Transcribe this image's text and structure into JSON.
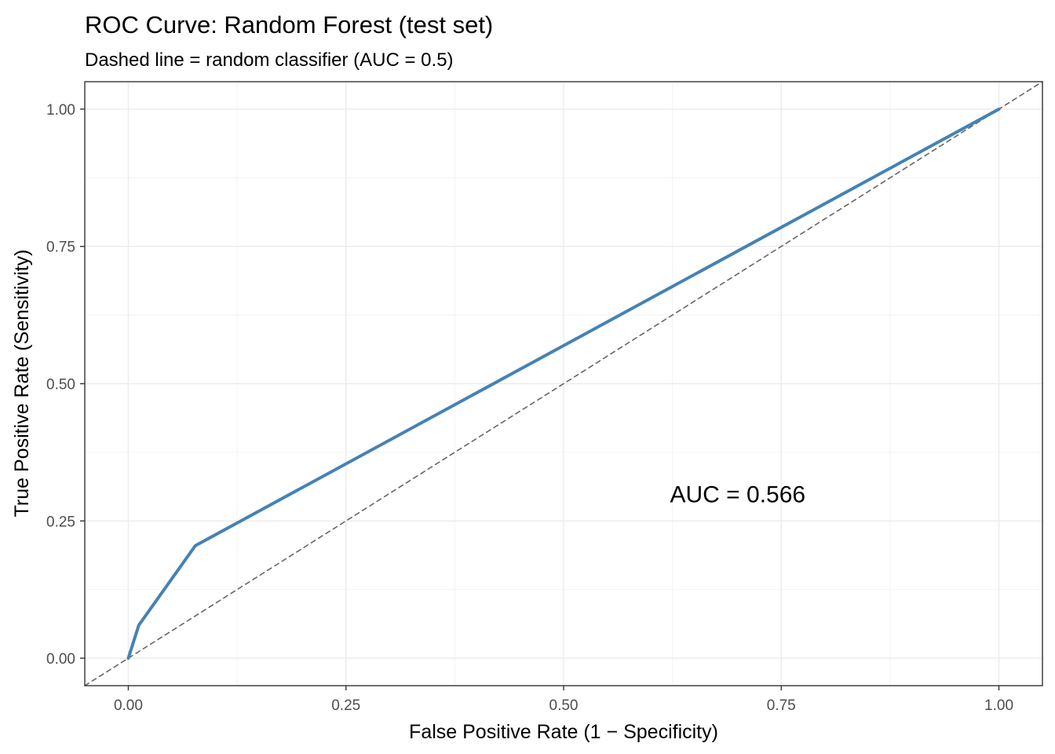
{
  "chart_data": {
    "type": "line",
    "title": "ROC Curve: Random Forest (test set)",
    "subtitle": "Dashed line = random classifier (AUC = 0.5)",
    "xlabel": "False Positive Rate (1 − Specificity)",
    "ylabel": "True Positive Rate (Sensitivity)",
    "xlim": [
      -0.05,
      1.05
    ],
    "ylim": [
      -0.05,
      1.05
    ],
    "x_ticks": [
      0.0,
      0.25,
      0.5,
      0.75,
      1.0
    ],
    "x_tick_labels": [
      "0.00",
      "0.25",
      "0.50",
      "0.75",
      "1.00"
    ],
    "y_ticks": [
      0.0,
      0.25,
      0.5,
      0.75,
      1.0
    ],
    "y_tick_labels": [
      "0.00",
      "0.25",
      "0.50",
      "0.75",
      "1.00"
    ],
    "grid": true,
    "series": [
      {
        "x": [
          0.0,
          0.012,
          0.077,
          1.0
        ],
        "y": [
          0.0,
          0.06,
          0.205,
          1.0
        ],
        "color": "#4682b4",
        "style": "solid"
      },
      {
        "x": [
          -0.05,
          1.05
        ],
        "y": [
          -0.05,
          1.05
        ],
        "color": "#666666",
        "style": "dashed"
      }
    ],
    "annotations": [
      {
        "text": "AUC = 0.566",
        "x": 0.7,
        "y": 0.3
      }
    ]
  }
}
